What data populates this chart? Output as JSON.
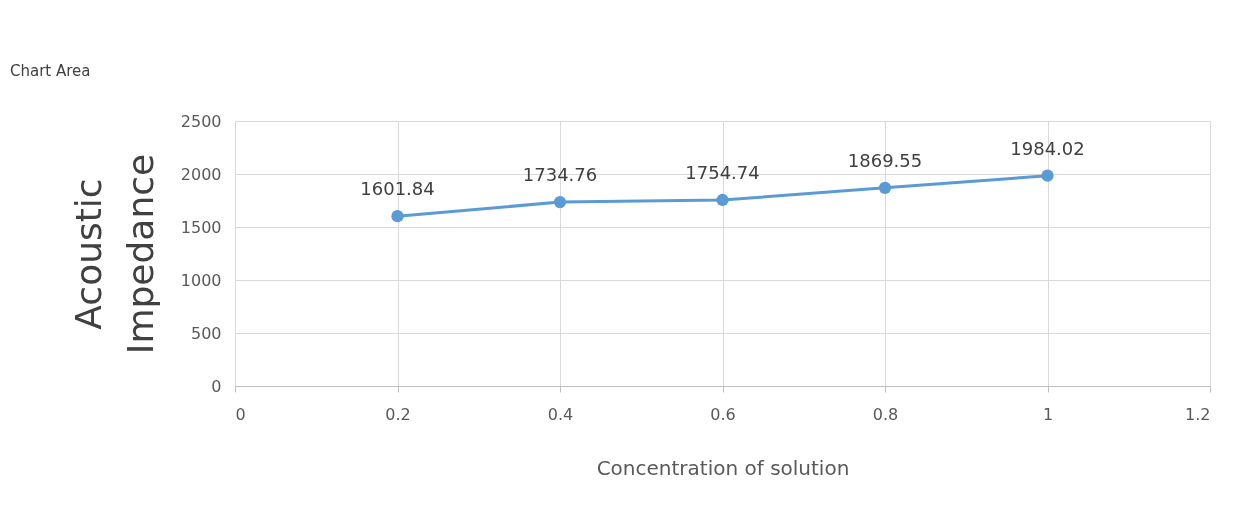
{
  "chart_data": {
    "type": "line",
    "xlabel": "Concentration of solution",
    "ylabel": "Acoustic Impedance",
    "x": [
      0.2,
      0.4,
      0.6,
      0.8,
      1
    ],
    "series": [
      {
        "color": "#5b9bd5",
        "values": [
          1601.84,
          1734.76,
          1754.74,
          1869.55,
          1984.02
        ]
      }
    ],
    "xlim": [
      0,
      1.2
    ],
    "xticks": [
      0,
      0.2,
      0.4,
      0.6,
      0.8,
      1,
      1.2
    ],
    "ylim": [
      0,
      2500
    ],
    "yticks": [
      0,
      500,
      1000,
      1500,
      2000,
      2500
    ],
    "grid": true,
    "marker": "circle",
    "line_style": "solid",
    "data_labels": true,
    "annotations": [
      "Chart Area"
    ]
  }
}
